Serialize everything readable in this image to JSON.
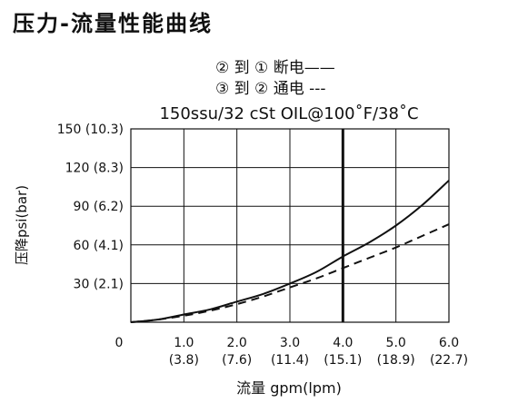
{
  "page_title": "压力-流量性能曲线",
  "chart_data": {
    "type": "line",
    "legend": [
      {
        "label": "② 到 ① 断电——",
        "series": "② 到 ① 断电"
      },
      {
        "label": "③ 到 ② 通电 ---",
        "series": "③ 到 ② 通电"
      }
    ],
    "subtitle": "150ssu/32 cSt OIL@100˚F/38˚C",
    "xlabel": "流量 gpm(lpm)",
    "ylabel": "压降psi(bar)",
    "xlim": [
      0,
      6
    ],
    "ylim": [
      0,
      150
    ],
    "x_ticks": [
      {
        "value": 0,
        "label": "0",
        "sub": ""
      },
      {
        "value": 1,
        "label": "1.0",
        "sub": "(3.8)"
      },
      {
        "value": 2,
        "label": "2.0",
        "sub": "(7.6)"
      },
      {
        "value": 3,
        "label": "3.0",
        "sub": "(11.4)"
      },
      {
        "value": 4,
        "label": "4.0",
        "sub": "(15.1)"
      },
      {
        "value": 5,
        "label": "5.0",
        "sub": "(18.9)"
      },
      {
        "value": 6,
        "label": "6.0",
        "sub": "(22.7)"
      }
    ],
    "y_ticks": [
      {
        "value": 30,
        "label": "30 (2.1)"
      },
      {
        "value": 60,
        "label": "60 (4.1)"
      },
      {
        "value": 90,
        "label": "90 (6.2)"
      },
      {
        "value": 120,
        "label": "120 (8.3)"
      },
      {
        "value": 150,
        "label": "150 (10.3)"
      }
    ],
    "grid": true,
    "reference_line_x": 4.0,
    "series": [
      {
        "name": "② 到 ① 断电",
        "style": "solid",
        "x": [
          0,
          0.5,
          1.0,
          1.5,
          2.0,
          2.5,
          3.0,
          3.5,
          4.0,
          4.5,
          5.0,
          5.5,
          6.0
        ],
        "y": [
          0,
          2,
          6,
          10,
          16,
          22,
          30,
          39,
          51,
          62,
          75,
          91,
          110
        ]
      },
      {
        "name": "③ 到 ② 通电",
        "style": "dashed",
        "x": [
          0,
          0.5,
          1.0,
          1.5,
          2.0,
          2.5,
          3.0,
          3.5,
          4.0,
          4.5,
          5.0,
          5.5,
          6.0
        ],
        "y": [
          0,
          2,
          5,
          9,
          14,
          20,
          27,
          34,
          42,
          50,
          58,
          67,
          76
        ]
      }
    ]
  }
}
